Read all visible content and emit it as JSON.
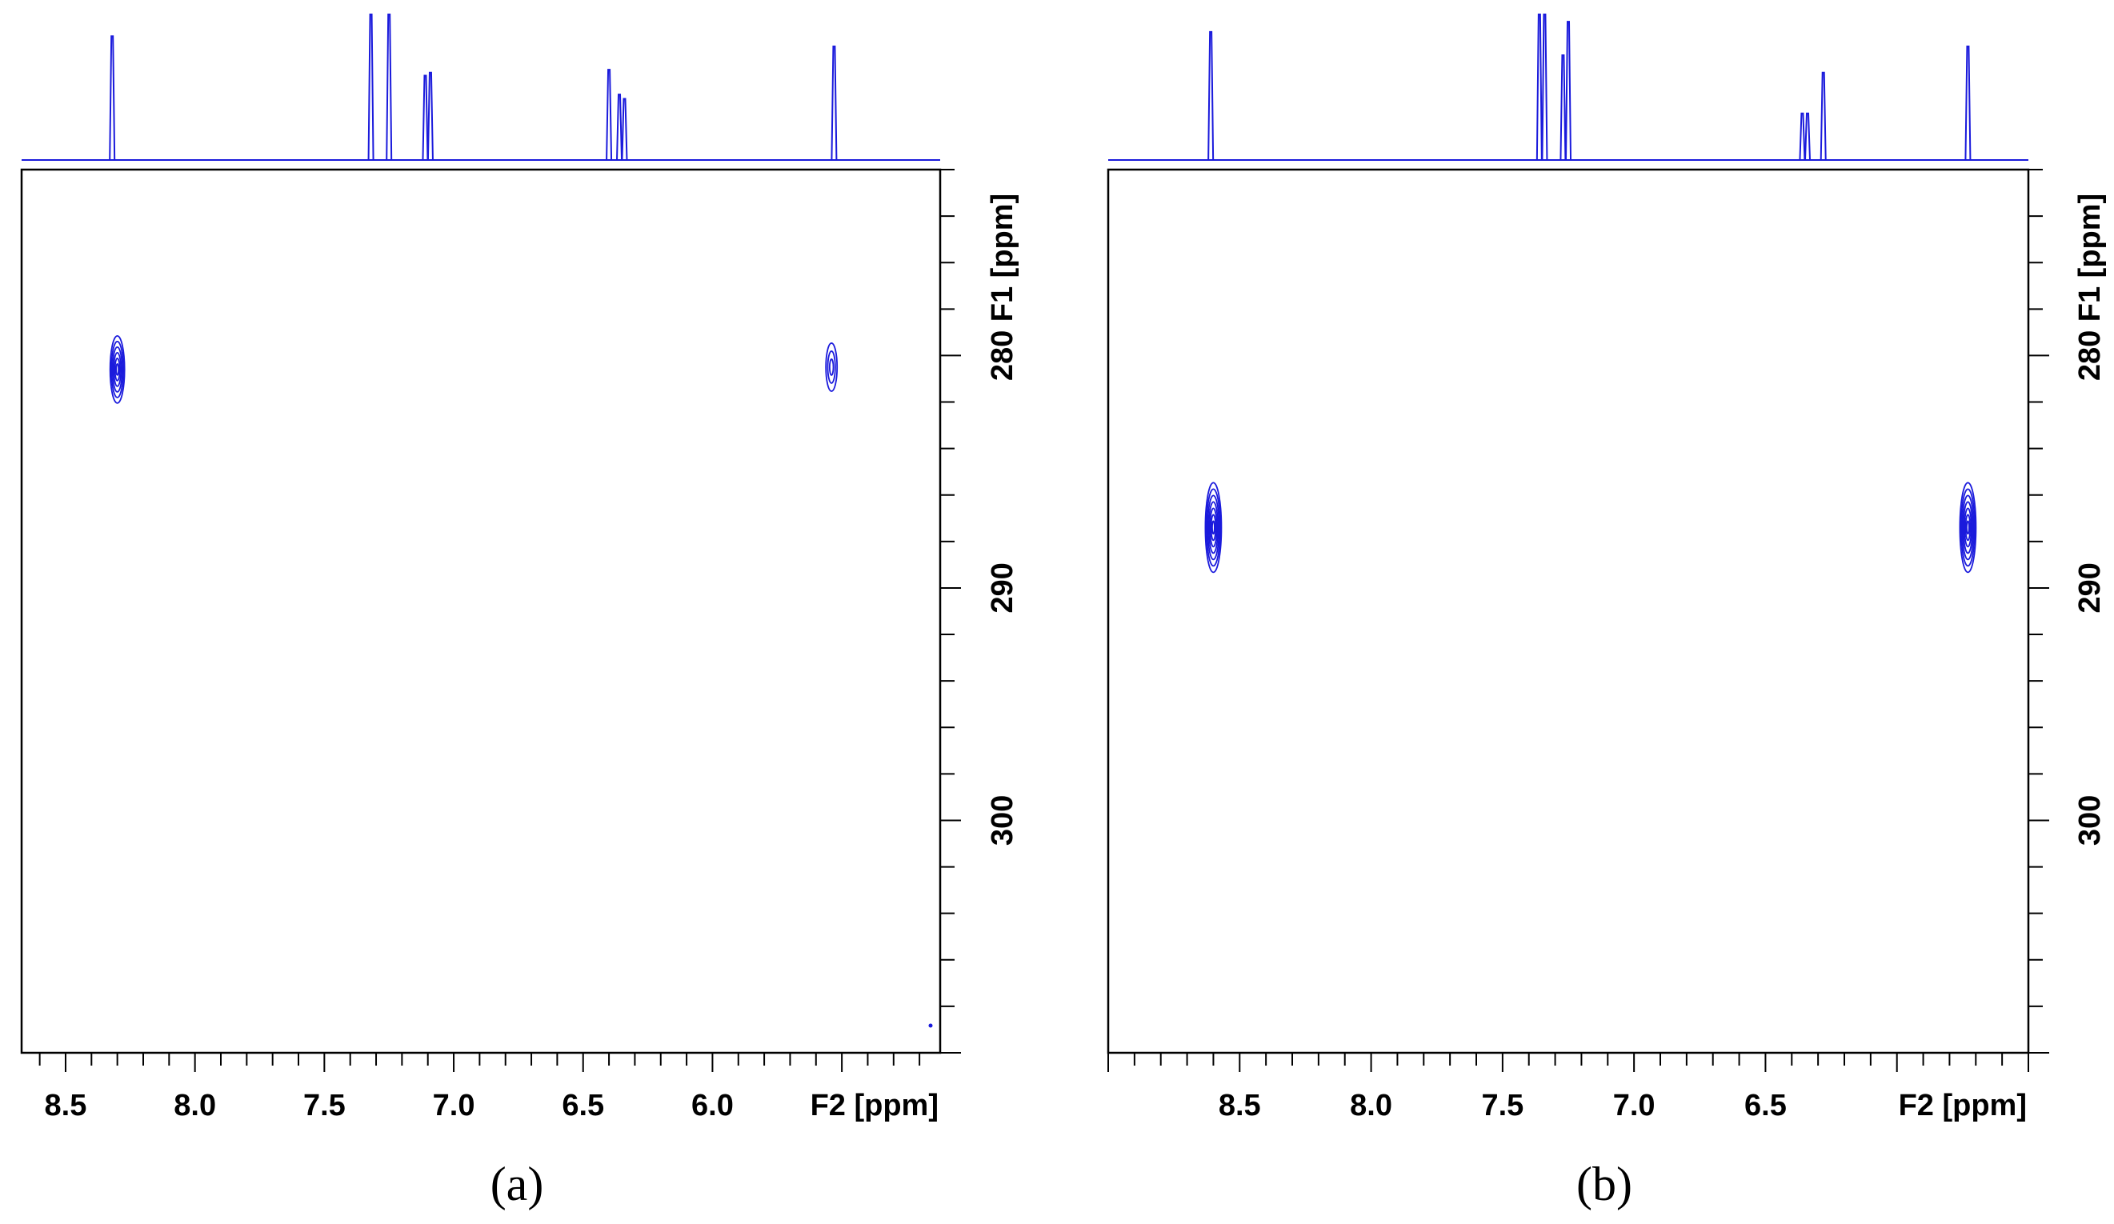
{
  "colors": {
    "spectrum": "#1a1adc",
    "axis": "#000000",
    "background": "#ffffff"
  },
  "chart_data": [
    {
      "type": "heatmap",
      "panel_label": "(a)",
      "xlabel": "F2 [ppm]",
      "ylabel": "F1 [ppm]",
      "xlim": [
        8.67,
        5.12
      ],
      "ylim": [
        272,
        310
      ],
      "x_ticks": [
        "8.5",
        "8.0",
        "7.5",
        "7.0",
        "6.5",
        "6.0"
      ],
      "y_ticks": [
        "280",
        "290",
        "300"
      ],
      "projection_1d": [
        {
          "ppm": 8.32,
          "height": 0.85
        },
        {
          "ppm": 7.32,
          "height": 1.0
        },
        {
          "ppm": 7.25,
          "height": 1.0
        },
        {
          "ppm": 7.11,
          "height": 0.58
        },
        {
          "ppm": 7.09,
          "height": 0.6
        },
        {
          "ppm": 6.4,
          "height": 0.62
        },
        {
          "ppm": 6.36,
          "height": 0.45
        },
        {
          "ppm": 6.34,
          "height": 0.42
        },
        {
          "ppm": 5.53,
          "height": 0.78
        }
      ],
      "cross_peaks": [
        {
          "f2": 8.3,
          "f1": 280.6,
          "intensity": "strong"
        },
        {
          "f2": 5.54,
          "f1": 280.5,
          "intensity": "weak"
        }
      ]
    },
    {
      "type": "heatmap",
      "panel_label": "(b)",
      "xlabel": "F2 [ppm]",
      "ylabel": "F1 [ppm]",
      "xlim": [
        9.0,
        5.5
      ],
      "ylim": [
        272,
        310
      ],
      "x_ticks": [
        "8.5",
        "8.0",
        "7.5",
        "7.0",
        "6.5"
      ],
      "y_ticks": [
        "280",
        "290",
        "300"
      ],
      "projection_1d": [
        {
          "ppm": 8.61,
          "height": 0.88
        },
        {
          "ppm": 7.36,
          "height": 1.0
        },
        {
          "ppm": 7.34,
          "height": 1.0
        },
        {
          "ppm": 7.27,
          "height": 0.72
        },
        {
          "ppm": 7.25,
          "height": 0.95
        },
        {
          "ppm": 6.36,
          "height": 0.32
        },
        {
          "ppm": 6.34,
          "height": 0.32
        },
        {
          "ppm": 6.28,
          "height": 0.6
        },
        {
          "ppm": 5.73,
          "height": 0.78
        }
      ],
      "cross_peaks": [
        {
          "f2": 8.6,
          "f1": 287.4,
          "intensity": "strong"
        },
        {
          "f2": 5.73,
          "f1": 287.4,
          "intensity": "strong"
        }
      ]
    }
  ]
}
